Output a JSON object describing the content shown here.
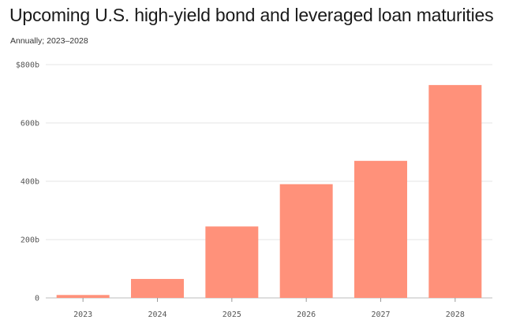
{
  "header": {
    "title": "Upcoming U.S. high-yield bond and leveraged loan maturities",
    "subtitle": "Annually; 2023–2028"
  },
  "colors": {
    "bar": "#ff917a",
    "grid": "#e4e4e4",
    "axis_text": "#555555"
  },
  "chart_data": {
    "type": "bar",
    "title": "Upcoming U.S. high-yield bond and leveraged loan maturities",
    "subtitle": "Annually; 2023–2028",
    "categories": [
      "2023",
      "2024",
      "2025",
      "2026",
      "2027",
      "2028"
    ],
    "values": [
      10,
      65,
      245,
      390,
      470,
      730
    ],
    "unit": "billion USD",
    "ylim": [
      0,
      800
    ],
    "yticks": [
      0,
      200,
      400,
      600,
      800
    ],
    "ytick_labels": [
      "0",
      "200b",
      "400b",
      "600b",
      "$800b"
    ],
    "xlabel": "",
    "ylabel": "",
    "grid": true,
    "legend": "none"
  }
}
